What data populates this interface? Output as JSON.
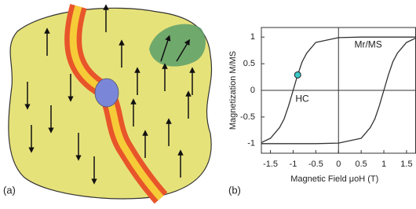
{
  "panel_a": {
    "label": "(a)"
  },
  "chart_data": {
    "type": "line",
    "label": "(b)",
    "xlabel": "Magnetic Field μoH (T)",
    "ylabel": "Magnetization M/MS",
    "xlim": [
      -1.7,
      1.7
    ],
    "ylim": [
      -1.18,
      1.18
    ],
    "xticks": [
      -1.5,
      -1,
      -0.5,
      0,
      0.5,
      1,
      1.5
    ],
    "yticks": [
      -1,
      -0.5,
      0,
      0.5,
      1
    ],
    "series": [
      {
        "color": "#333333",
        "x": [
          1.7,
          1,
          0.5,
          0,
          -0.5,
          -0.7,
          -0.8,
          -0.9,
          -1,
          -1.1,
          -1.2,
          -1.3,
          -1.5,
          -1.7
        ],
        "values": [
          1,
          1,
          1,
          0.99,
          0.9,
          0.7,
          0.54,
          0.29,
          0,
          -0.29,
          -0.54,
          -0.7,
          -0.9,
          -0.98
        ]
      },
      {
        "color": "#333333",
        "x": [
          -1.7,
          -1,
          -0.5,
          0,
          0.5,
          0.7,
          0.8,
          0.9,
          1,
          1.1,
          1.2,
          1.3,
          1.5,
          1.7
        ],
        "values": [
          -1,
          -1,
          -1,
          -0.99,
          -0.9,
          -0.7,
          -0.54,
          -0.29,
          0,
          0.29,
          0.54,
          0.7,
          0.9,
          0.98
        ]
      }
    ],
    "marker": {
      "x": -0.9,
      "y": 0.29,
      "color": "#3cc8c8"
    },
    "annotations": [
      {
        "text": "Mr/MS",
        "x": 0.35,
        "y": 0.85
      },
      {
        "text": "HC",
        "x": -0.95,
        "y": -0.17
      }
    ]
  }
}
